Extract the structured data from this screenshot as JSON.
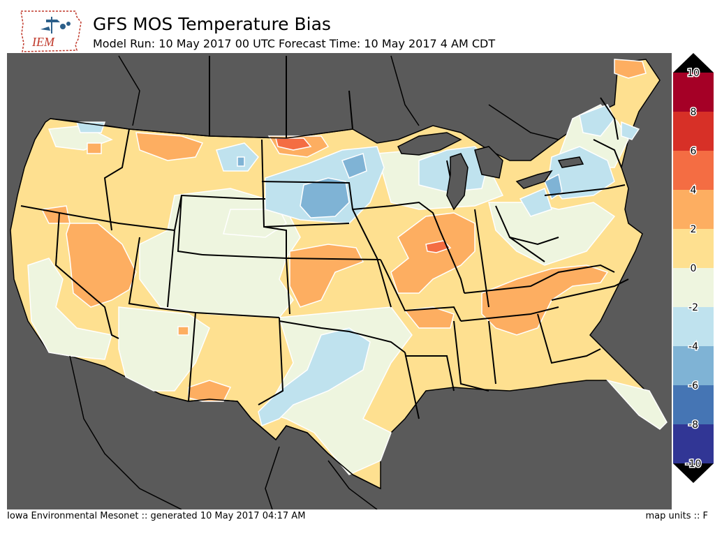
{
  "header": {
    "logo_text": "IEM",
    "title": "GFS MOS Temperature Bias",
    "subtitle": "Model Run: 10 May 2017 00 UTC Forecast Time: 10 May 2017 4 AM CDT"
  },
  "footer": {
    "credit": "Iowa Environmental Mesonet :: generated 10 May 2017 04:17 AM",
    "units": "map units :: F"
  },
  "colorbar": {
    "ticks": [
      "10",
      "8",
      "6",
      "4",
      "2",
      "0",
      "-2",
      "-4",
      "-6",
      "-8",
      "-10"
    ],
    "bins": [
      {
        "range": "8 to 10",
        "color": "#a50026"
      },
      {
        "range": "6 to 8",
        "color": "#d73027"
      },
      {
        "range": "4 to 6",
        "color": "#f46d43"
      },
      {
        "range": "2 to 4",
        "color": "#fdae61"
      },
      {
        "range": "0 to 2",
        "color": "#fee090"
      },
      {
        "range": "-2 to 0",
        "color": "#eef5df"
      },
      {
        "range": "-4 to -2",
        "color": "#bfe2ee"
      },
      {
        "range": "-6 to -4",
        "color": "#7fb3d5"
      },
      {
        "range": "-8 to -6",
        "color": "#4575b4"
      },
      {
        "range": "-10 to -8",
        "color": "#313695"
      }
    ],
    "over_color": "#000000",
    "under_color": "#000000"
  },
  "map": {
    "background_color": "#5a5a5a",
    "border_color": "#000000",
    "contour_color": "#ffffff"
  }
}
